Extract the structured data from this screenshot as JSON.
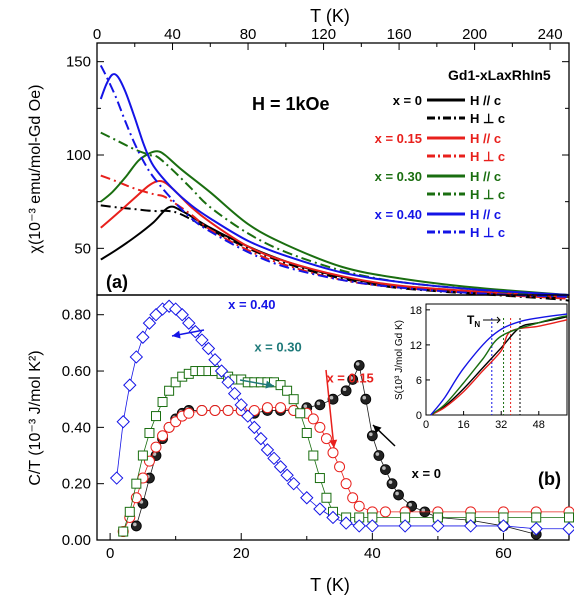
{
  "chart_data": [
    {
      "panel": "(a)",
      "type": "line",
      "title": "H = 1kOe",
      "xlabel": "T (K)",
      "ylabel": "χ(10⁻³ emu/mol-Gd Oe)",
      "xlim": [
        0,
        250
      ],
      "ylim": [
        25,
        160
      ],
      "xticks": [
        0,
        40,
        80,
        120,
        160,
        200,
        240
      ],
      "yticks": [
        50,
        100,
        150
      ],
      "legend_title": "Gd1-xLaxRhIn5",
      "legend_placement": "top-right",
      "series": [
        {
          "x_label": "x = 0",
          "name": "H // c",
          "style": "solid",
          "color": "#000000",
          "x": [
            2,
            10,
            20,
            30,
            38,
            45,
            60,
            80,
            100,
            120,
            150,
            180,
            210,
            240,
            250
          ],
          "y": [
            44,
            49,
            56,
            64,
            72,
            70,
            61,
            51,
            43,
            37,
            31,
            28,
            26,
            24,
            24
          ]
        },
        {
          "x_label": "x = 0",
          "name": "H ⊥ c",
          "style": "dashdot",
          "color": "#000000",
          "x": [
            2,
            10,
            20,
            30,
            38,
            45,
            60,
            80,
            100,
            120,
            150,
            180,
            210,
            240,
            250
          ],
          "y": [
            73,
            72,
            71,
            70,
            70,
            68,
            60,
            50,
            42,
            36,
            30,
            27,
            25,
            23,
            22
          ]
        },
        {
          "x_label": "x = 0.15",
          "name": "H // c",
          "style": "solid",
          "color": "#e8201c",
          "x": [
            2,
            10,
            20,
            28,
            34,
            40,
            50,
            60,
            80,
            100,
            130,
            160,
            200,
            250
          ],
          "y": [
            61,
            68,
            77,
            84,
            86,
            82,
            72,
            64,
            51,
            43,
            35,
            30,
            27,
            24
          ]
        },
        {
          "x_label": "x = 0.15",
          "name": "H ⊥ c",
          "style": "dashdot",
          "color": "#e8201c",
          "x": [
            2,
            10,
            20,
            30,
            35,
            40,
            50,
            60,
            80,
            100,
            130,
            160,
            200,
            250
          ],
          "y": [
            89,
            86,
            82,
            79,
            78,
            75,
            68,
            60,
            49,
            41,
            33,
            29,
            26,
            23
          ]
        },
        {
          "x_label": "x = 0.30",
          "name": "H // c",
          "style": "solid",
          "color": "#1a6e10",
          "x": [
            2,
            8,
            15,
            22,
            28,
            32,
            36,
            45,
            60,
            80,
            100,
            130,
            160,
            200,
            250
          ],
          "y": [
            75,
            80,
            88,
            97,
            101,
            102,
            100,
            92,
            80,
            63,
            52,
            40,
            34,
            29,
            25
          ]
        },
        {
          "x_label": "x = 0.30",
          "name": "H ⊥ c",
          "style": "dashdot",
          "color": "#1a6e10",
          "x": [
            2,
            10,
            20,
            28,
            32,
            40,
            50,
            60,
            80,
            100,
            130,
            160,
            200,
            250
          ],
          "y": [
            112,
            108,
            103,
            100,
            99,
            92,
            82,
            72,
            58,
            48,
            38,
            32,
            28,
            24
          ]
        },
        {
          "x_label": "x = 0.40",
          "name": "H // c",
          "style": "solid",
          "color": "#1414e6",
          "x": [
            2,
            5,
            8,
            11,
            15,
            20,
            25,
            30,
            40,
            50,
            60,
            80,
            100,
            130,
            160,
            200,
            250
          ],
          "y": [
            130,
            138,
            143,
            142,
            134,
            120,
            105,
            94,
            82,
            73,
            66,
            54,
            46,
            37,
            32,
            28,
            25
          ]
        },
        {
          "x_label": "x = 0.40",
          "name": "H ⊥ c",
          "style": "dashdot",
          "color": "#1414e6",
          "x": [
            2,
            5,
            10,
            15,
            20,
            25,
            30,
            40,
            50,
            60,
            80,
            100,
            130,
            160,
            200,
            250
          ],
          "y": [
            148,
            142,
            131,
            118,
            106,
            96,
            88,
            76,
            66,
            59,
            48,
            40,
            33,
            29,
            26,
            24
          ]
        }
      ]
    },
    {
      "panel": "(b)",
      "type": "scatter",
      "xlabel": "T (K)",
      "ylabel": "C/T (10⁻³ J/mol K²)",
      "xlim": [
        -2,
        70
      ],
      "ylim": [
        0,
        0.87
      ],
      "xticks": [
        0,
        20,
        40,
        60
      ],
      "yticks": [
        0.0,
        0.2,
        0.4,
        0.6,
        0.8
      ],
      "series": [
        {
          "name": "x = 0",
          "marker": "filled-circle",
          "color": "#1a1a1a",
          "x": [
            4,
            5,
            6,
            7,
            8,
            9,
            10,
            11,
            12,
            14,
            16,
            18,
            20,
            22,
            24,
            26,
            28,
            30,
            32,
            34,
            36,
            37,
            38,
            39,
            40,
            41,
            42,
            43,
            44,
            46,
            48,
            50,
            55,
            60,
            65
          ],
          "y": [
            0.05,
            0.13,
            0.22,
            0.3,
            0.36,
            0.4,
            0.43,
            0.45,
            0.46,
            0.46,
            0.46,
            0.46,
            0.46,
            0.45,
            0.46,
            0.46,
            0.46,
            0.47,
            0.48,
            0.5,
            0.53,
            0.57,
            0.62,
            0.5,
            0.37,
            0.3,
            0.25,
            0.2,
            0.16,
            0.12,
            0.1,
            0.08,
            0.07,
            0.05,
            0.02
          ]
        },
        {
          "name": "x = 0.15",
          "marker": "open-circle",
          "color": "#e8201c",
          "x": [
            2,
            3,
            4,
            5,
            6,
            7,
            8,
            9,
            10,
            11,
            12,
            14,
            16,
            18,
            20,
            22,
            24,
            26,
            28,
            30,
            31,
            32,
            33,
            34,
            35,
            36,
            37,
            38,
            40,
            42,
            45,
            50,
            55,
            60,
            65,
            70
          ],
          "y": [
            0.03,
            0.08,
            0.15,
            0.22,
            0.28,
            0.33,
            0.37,
            0.4,
            0.42,
            0.44,
            0.45,
            0.46,
            0.46,
            0.46,
            0.46,
            0.46,
            0.47,
            0.47,
            0.46,
            0.45,
            0.43,
            0.4,
            0.36,
            0.31,
            0.26,
            0.2,
            0.15,
            0.12,
            0.1,
            0.1,
            0.1,
            0.1,
            0.1,
            0.1,
            0.1,
            0.1
          ]
        },
        {
          "name": "x = 0.30",
          "marker": "open-square",
          "color": "#1a6e10",
          "x": [
            2,
            3,
            4,
            5,
            6,
            7,
            8,
            9,
            10,
            11,
            12,
            13,
            14,
            15,
            16,
            17,
            18,
            19,
            20,
            21,
            22,
            23,
            24,
            25,
            26,
            27,
            28,
            29,
            30,
            31,
            32,
            33,
            34,
            36,
            38,
            40,
            45,
            50,
            55,
            60,
            65,
            70
          ],
          "y": [
            0.03,
            0.1,
            0.2,
            0.3,
            0.38,
            0.44,
            0.49,
            0.53,
            0.56,
            0.58,
            0.59,
            0.6,
            0.6,
            0.6,
            0.6,
            0.59,
            0.58,
            0.57,
            0.57,
            0.56,
            0.56,
            0.56,
            0.56,
            0.56,
            0.55,
            0.53,
            0.5,
            0.45,
            0.38,
            0.3,
            0.22,
            0.15,
            0.1,
            0.08,
            0.08,
            0.08,
            0.08,
            0.08,
            0.08,
            0.08,
            0.08,
            0.08
          ]
        },
        {
          "name": "x = 0.40",
          "marker": "open-diamond",
          "color": "#1414e6",
          "x": [
            1,
            2,
            3,
            4,
            5,
            6,
            7,
            8,
            9,
            10,
            11,
            12,
            13,
            14,
            15,
            16,
            17,
            18,
            19,
            20,
            21,
            22,
            23,
            24,
            25,
            26,
            27,
            28,
            30,
            32,
            34,
            36,
            38,
            40,
            45,
            50,
            55,
            60,
            65,
            70
          ],
          "y": [
            0.22,
            0.42,
            0.55,
            0.65,
            0.72,
            0.77,
            0.8,
            0.82,
            0.83,
            0.82,
            0.8,
            0.77,
            0.74,
            0.71,
            0.68,
            0.64,
            0.6,
            0.56,
            0.52,
            0.48,
            0.44,
            0.4,
            0.36,
            0.32,
            0.29,
            0.26,
            0.23,
            0.2,
            0.15,
            0.11,
            0.08,
            0.06,
            0.05,
            0.05,
            0.05,
            0.05,
            0.05,
            0.05,
            0.04,
            0.04
          ]
        }
      ],
      "annotations": [
        {
          "text": "x = 0.40",
          "color": "#1414e6",
          "x": 18,
          "y": 0.82
        },
        {
          "text": "x = 0.30",
          "color": "#1f7a7a",
          "x": 22,
          "y": 0.67
        },
        {
          "text": "x = 0.15",
          "color": "#e8201c",
          "x": 33,
          "y": 0.56
        },
        {
          "text": "x = 0",
          "color": "#000000",
          "x": 46,
          "y": 0.22
        }
      ],
      "panel_label": "(b)"
    },
    {
      "panel": "inset",
      "type": "line",
      "ylabel": "S(10³ J/mol Gd K)",
      "xlim": [
        0,
        60
      ],
      "ylim": [
        0,
        19
      ],
      "xticks": [
        0,
        16,
        32,
        48
      ],
      "yticks": [
        0,
        6,
        12,
        18
      ],
      "annotation": "TN",
      "vlines": [
        28,
        33,
        36,
        40
      ],
      "series": [
        {
          "name": "x = 0",
          "color": "#000000",
          "x": [
            2,
            8,
            16,
            24,
            32,
            40,
            48,
            60
          ],
          "y": [
            0,
            1.5,
            4.5,
            8,
            11.5,
            15,
            15.8,
            16.8
          ]
        },
        {
          "name": "x = 0.15",
          "color": "#e8201c",
          "x": [
            2,
            8,
            16,
            24,
            32,
            36,
            48,
            60
          ],
          "y": [
            0,
            1.3,
            4,
            7.5,
            11,
            14.3,
            15.2,
            16.3
          ]
        },
        {
          "name": "x = 0.30",
          "color": "#1a6e10",
          "x": [
            2,
            8,
            16,
            24,
            32,
            48,
            60
          ],
          "y": [
            0,
            1.8,
            5.5,
            9.5,
            13.5,
            15.8,
            17
          ]
        },
        {
          "name": "x = 0.40",
          "color": "#1414e6",
          "x": [
            2,
            8,
            16,
            28,
            40,
            60
          ],
          "y": [
            0,
            3,
            8,
            13.5,
            16,
            17.3
          ]
        }
      ]
    }
  ]
}
